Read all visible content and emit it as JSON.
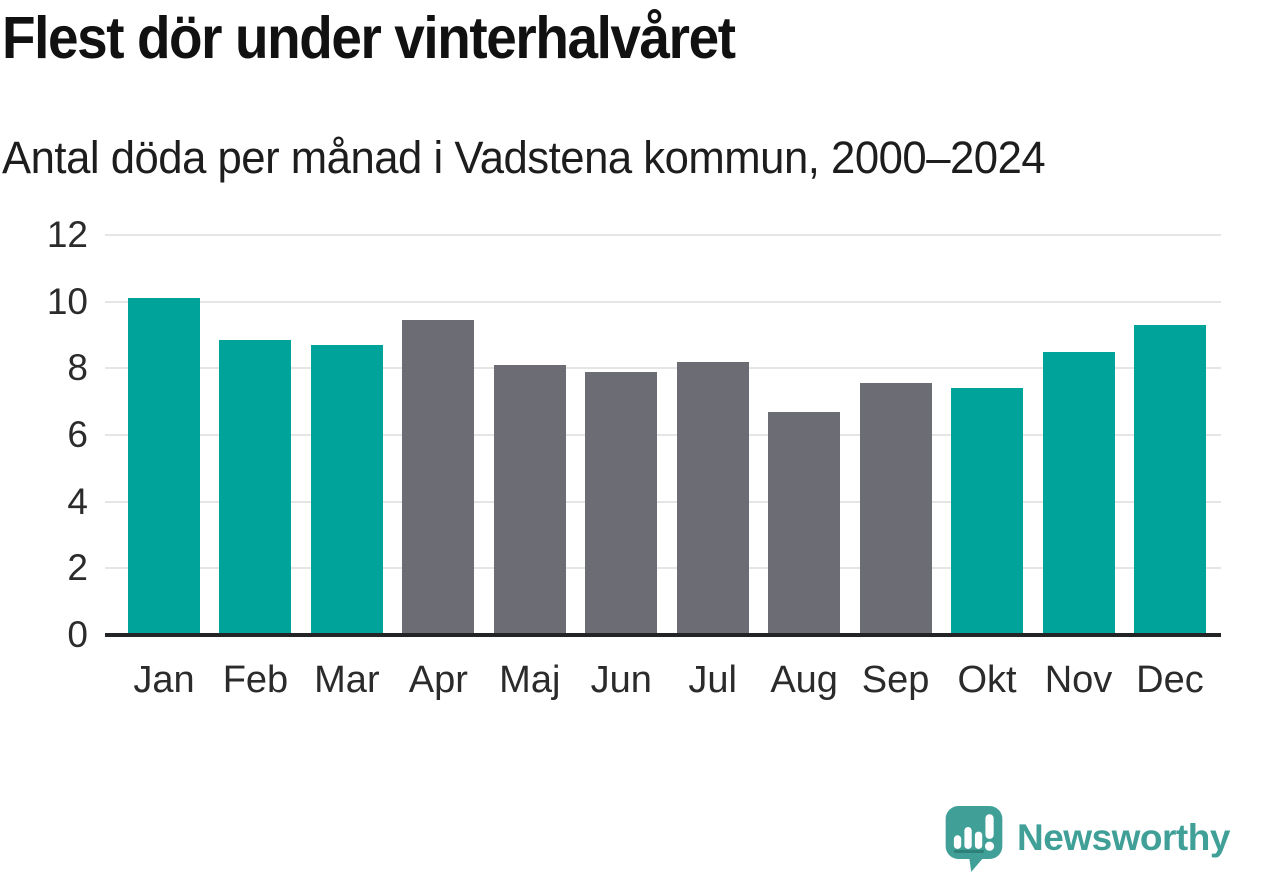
{
  "title": "Flest dör under vinterhalvåret",
  "subtitle": "Antal döda per månad i Vadstena kommun, 2000–2024",
  "branding": {
    "logo_text": "Newsworthy",
    "logo_icon": "newsworthy-speech-bubble-chart-icon",
    "brand_color": "#40a098"
  },
  "colors": {
    "highlight_teal": "#00a39a",
    "neutral_gray": "#6c6c74",
    "axis_line": "#222426",
    "gridline": "#e5e5e5"
  },
  "chart_data": {
    "type": "bar",
    "title": "Flest dör under vinterhalvåret",
    "subtitle": "Antal döda per månad i Vadstena kommun, 2000–2024",
    "categories": [
      "Jan",
      "Feb",
      "Mar",
      "Apr",
      "Maj",
      "Jun",
      "Jul",
      "Aug",
      "Sep",
      "Okt",
      "Nov",
      "Dec"
    ],
    "values": [
      10.1,
      8.85,
      8.7,
      9.45,
      8.1,
      7.9,
      8.2,
      6.7,
      7.55,
      7.4,
      8.5,
      9.3
    ],
    "bar_colors": [
      "#00a39a",
      "#00a39a",
      "#00a39a",
      "#6c6c74",
      "#6c6c74",
      "#6c6c74",
      "#6c6c74",
      "#6c6c74",
      "#6c6c74",
      "#00a39a",
      "#00a39a",
      "#00a39a"
    ],
    "xlabel": "",
    "ylabel": "",
    "yticks": [
      0,
      2,
      4,
      6,
      8,
      10,
      12
    ],
    "ylim": [
      0,
      12
    ],
    "grid": true,
    "legend": false
  }
}
